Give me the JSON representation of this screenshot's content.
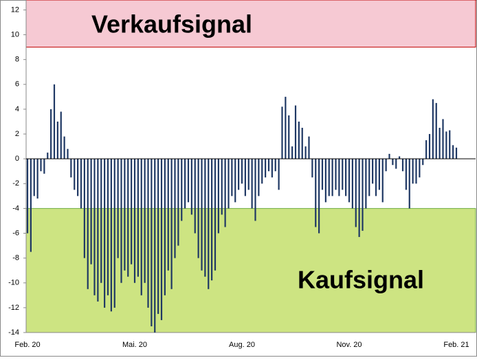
{
  "chart_data": {
    "type": "bar",
    "categories": [
      "Feb. 20",
      null,
      null,
      null,
      null,
      null,
      null,
      null,
      null,
      null,
      null,
      null,
      null,
      null,
      null,
      null,
      null,
      null,
      null,
      null,
      null,
      null,
      null,
      null,
      null,
      null,
      null,
      null,
      null,
      null,
      null,
      null,
      "Mai. 20",
      null,
      null,
      null,
      null,
      null,
      null,
      null,
      null,
      null,
      null,
      null,
      null,
      null,
      null,
      null,
      null,
      null,
      null,
      null,
      null,
      null,
      null,
      null,
      null,
      null,
      null,
      null,
      null,
      null,
      null,
      null,
      "Aug. 20",
      null,
      null,
      null,
      null,
      null,
      null,
      null,
      null,
      null,
      null,
      null,
      null,
      null,
      null,
      null,
      null,
      null,
      null,
      null,
      null,
      null,
      null,
      null,
      null,
      null,
      null,
      null,
      null,
      null,
      null,
      null,
      "Nov. 20",
      null,
      null,
      null,
      null,
      null,
      null,
      null,
      null,
      null,
      null,
      null,
      null,
      null,
      null,
      null,
      null,
      null,
      null,
      null,
      null,
      null,
      null,
      null,
      null,
      null,
      null,
      null,
      null,
      null,
      null,
      null,
      "Feb. 21"
    ],
    "values": [
      -6,
      -7.5,
      -3,
      -3.2,
      -1,
      -1.2,
      0.5,
      4,
      6,
      3,
      3.8,
      1.8,
      0.8,
      -1.5,
      -2.5,
      -3,
      -4,
      -8,
      -10.5,
      -8.5,
      -11,
      -11.5,
      -10,
      -12,
      -11,
      -12.3,
      -12,
      -8,
      -10,
      -9,
      -9.5,
      -8.5,
      -10,
      -9.5,
      -11,
      -10,
      -12,
      -13.5,
      -14,
      -12.5,
      -13,
      -11,
      -9,
      -10.5,
      -8,
      -7,
      -5,
      -4,
      -3.5,
      -4.5,
      -6,
      -8,
      -9,
      -9.5,
      -10.5,
      -9.8,
      -9,
      -6,
      -4.5,
      -5.5,
      -4,
      -3,
      -3.5,
      -2.5,
      -2,
      -3,
      -2.5,
      -4,
      -5,
      -3,
      -2,
      -1.5,
      -1,
      -1.5,
      -1,
      -2.5,
      4.2,
      5,
      3.5,
      1,
      4.3,
      3,
      2.5,
      1,
      1.8,
      -1.5,
      -5.5,
      -6,
      -2.5,
      -3.5,
      -3,
      -3,
      -2.5,
      -3,
      -2.5,
      -3,
      -3.5,
      -4,
      -5.5,
      -6.3,
      -5.8,
      -4,
      -3,
      -2,
      -3,
      -2.5,
      -3.5,
      -1,
      0.4,
      -0.5,
      -0.8,
      0.2,
      -1,
      -2.5,
      -4,
      -2,
      -2,
      -1.5,
      -0.5,
      1.5,
      2,
      4.8,
      4.5,
      2.5,
      3.2,
      2.2,
      2.3,
      1.1,
      0.9
    ],
    "color": "#1f3864",
    "ylim": [
      -14,
      12.8
    ],
    "yticks": [
      -14,
      -12,
      -10,
      -8,
      -6,
      -4,
      -2,
      0,
      2,
      4,
      6,
      8,
      10,
      12
    ],
    "bands": [
      {
        "label": "Verkaufsignal",
        "from": 9,
        "to": 12.8,
        "color": "#f6c9d3",
        "border": "#c00000"
      },
      {
        "label": "Kaufsignal",
        "from": -14,
        "to": -4,
        "color": "#cde482",
        "border": "#70ad47"
      }
    ]
  }
}
